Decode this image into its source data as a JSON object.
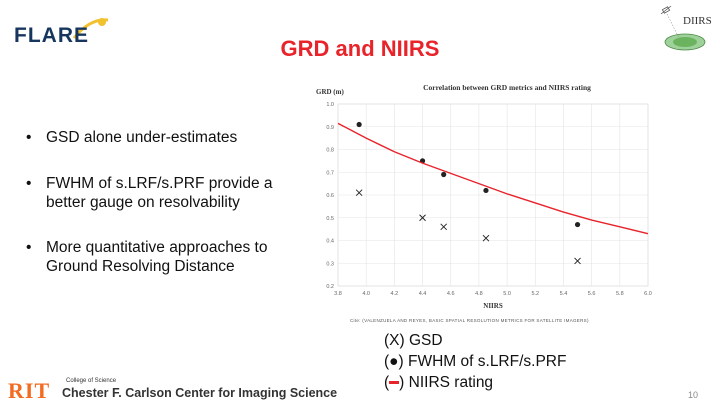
{
  "header": {
    "logo_left": "FLARE",
    "logo_right": "DIIRS",
    "title": "GRD and NIIRS"
  },
  "bullets": [
    {
      "marker": "•",
      "text": "GSD alone under-estimates"
    },
    {
      "marker": "•",
      "text": "FWHM of s.LRF/s.PRF provide a better gauge on resolvability"
    },
    {
      "marker": "•",
      "text": " More quantitative approaches to Ground Resolving Distance"
    }
  ],
  "chart_data": {
    "type": "scatter",
    "title": "Correlation between GRD metrics and NIIRS rating",
    "xlabel": "NIIRS",
    "ylabel": "GRD (m)",
    "xlim": [
      3.8,
      6.0
    ],
    "ylim": [
      0.2,
      1.0
    ],
    "x_ticks": [
      "3.8",
      "4.0",
      "4.2",
      "4.4",
      "4.6",
      "4.8",
      "5.0",
      "5.2",
      "5.4",
      "5.6",
      "5.8",
      "6.0"
    ],
    "y_ticks": [
      "0.2",
      "0.3",
      "0.4",
      "0.5",
      "0.6",
      "0.7",
      "0.8",
      "0.9",
      "1.0"
    ],
    "grid": true,
    "colors": {
      "curve": "#e8232a",
      "markers": "#222222",
      "grid": "#e4e4e4"
    },
    "series": [
      {
        "name": "GSD",
        "marker": "x",
        "x": [
          3.95,
          4.4,
          4.55,
          4.85,
          5.5
        ],
        "y": [
          0.61,
          0.5,
          0.46,
          0.41,
          0.31
        ]
      },
      {
        "name": "FWHM of s.LRF/s.PRF",
        "marker": "dot",
        "x": [
          3.95,
          4.4,
          4.55,
          4.85,
          5.5
        ],
        "y": [
          0.91,
          0.75,
          0.69,
          0.62,
          0.47
        ]
      },
      {
        "name": "NIIRS rating",
        "marker": "line",
        "x": [
          3.8,
          4.0,
          4.2,
          4.4,
          4.6,
          4.8,
          5.0,
          5.2,
          5.4,
          5.6,
          5.8,
          6.0
        ],
        "y": [
          0.915,
          0.85,
          0.79,
          0.74,
          0.695,
          0.65,
          0.605,
          0.565,
          0.525,
          0.49,
          0.46,
          0.43
        ]
      }
    ]
  },
  "citation": "Cite: (VALENZUELA AND REYES, BASIC SPATIAL RESOLUTION METRICS FOR SATELLITE IMAGERS)",
  "legend": [
    {
      "prefix": "(",
      "symbol": "X",
      "suffix": ") GSD"
    },
    {
      "prefix": "(",
      "symbol": "●",
      "suffix": ")  FWHM of s.LRF/s.PRF"
    },
    {
      "prefix": "(",
      "symbol": "",
      "suffix": ") NIIRS rating"
    }
  ],
  "footer": {
    "institution": "RIT",
    "college": "College of Science",
    "center": "Chester F. Carlson Center for Imaging Science",
    "page_number": "10"
  }
}
